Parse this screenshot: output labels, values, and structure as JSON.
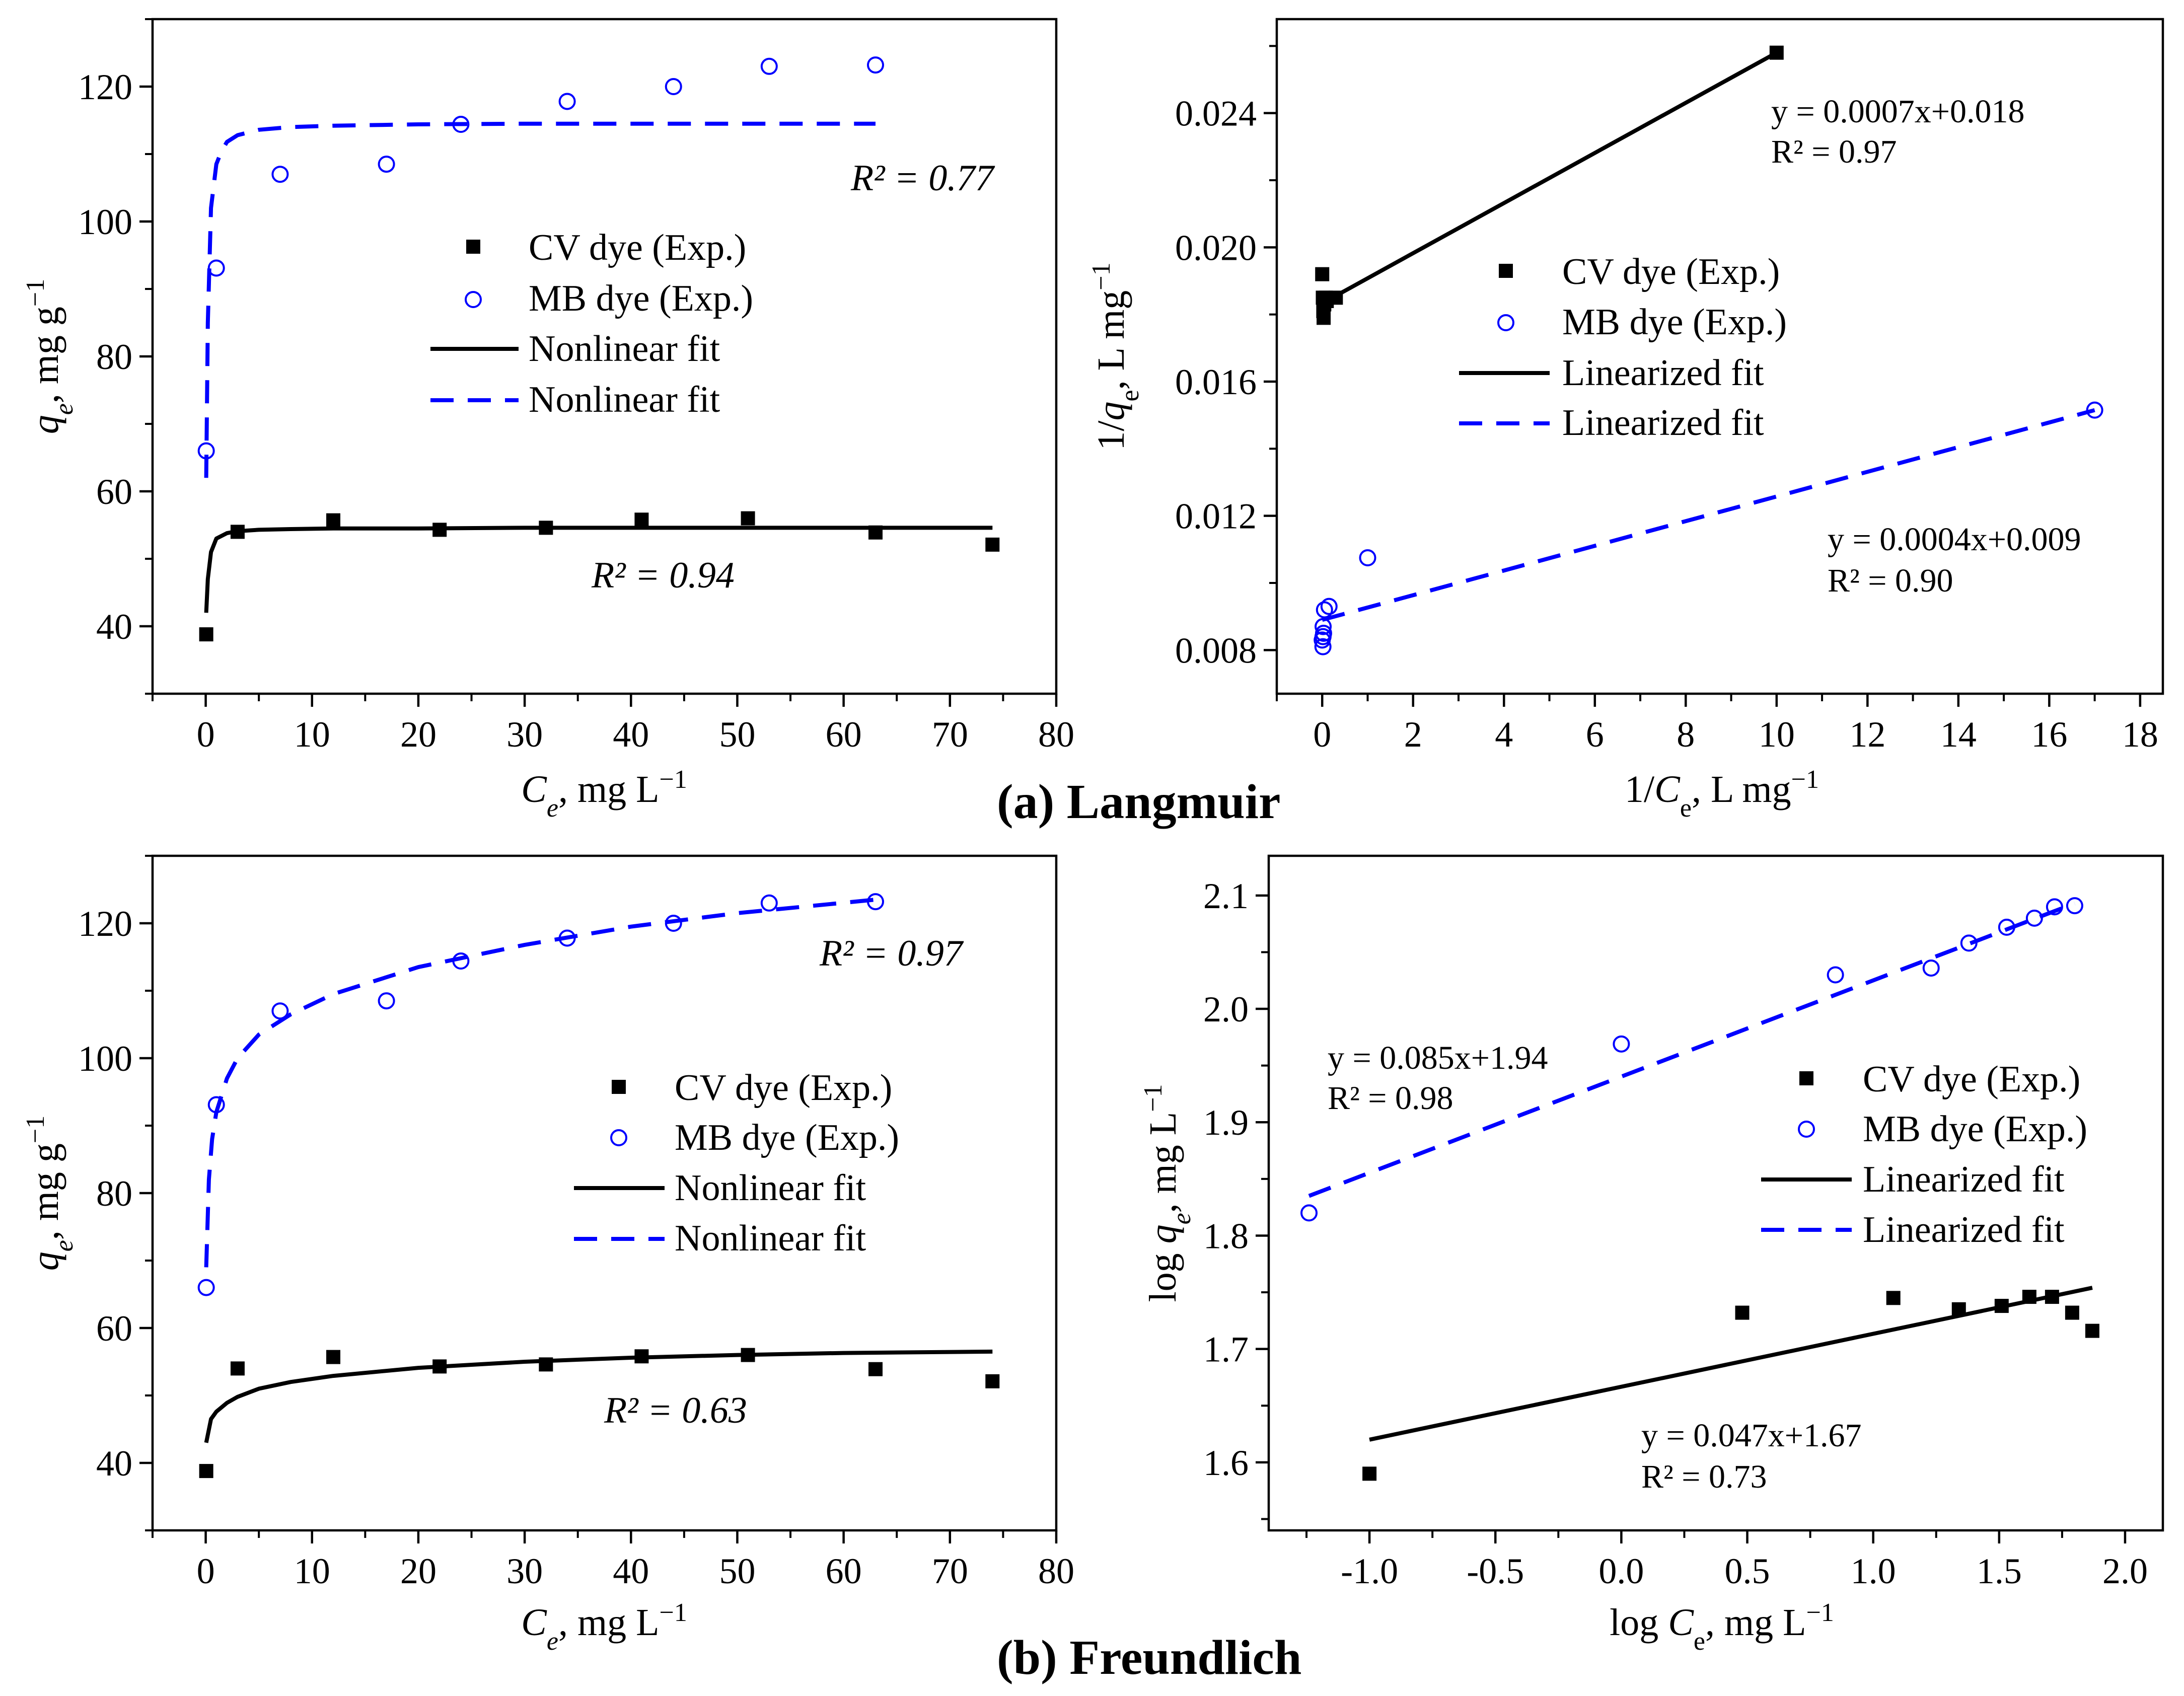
{
  "figure": {
    "caption_a": "(a) Langmuir",
    "caption_b": "(b) Freundlich"
  },
  "chart_data": [
    {
      "id": "langmuir_nonlinear",
      "type": "scatter",
      "xlabel": "Ce, mg L−1",
      "ylabel": "qe, mg g−1",
      "xlim": [
        -5,
        80
      ],
      "ylim": [
        30,
        130
      ],
      "xticks": [
        0,
        10,
        20,
        30,
        40,
        50,
        60,
        70,
        80
      ],
      "yticks": [
        40,
        60,
        80,
        100,
        120
      ],
      "legend": [
        "CV dye (Exp.)",
        "MB dye (Exp.)",
        "Nonlinear fit",
        "Nonlinear fit"
      ],
      "series": [
        {
          "name": "CV dye (Exp.)",
          "marker": "square",
          "color": "#000000",
          "x": [
            0.05,
            3,
            12,
            22,
            32,
            41,
            51,
            63,
            74
          ],
          "y": [
            38.8,
            54.0,
            55.7,
            54.3,
            54.6,
            55.8,
            56.0,
            53.9,
            52.1
          ]
        },
        {
          "name": "MB dye (Exp.)",
          "marker": "circle",
          "color": "#0000ff",
          "x": [
            0.05,
            1,
            7,
            17,
            24,
            34,
            44,
            53,
            63
          ],
          "y": [
            66.0,
            93.1,
            107.0,
            108.5,
            114.4,
            117.8,
            120.0,
            123.0,
            123.2
          ]
        },
        {
          "name": "Nonlinear fit",
          "line": "solid",
          "color": "#000000",
          "x": [
            0.05,
            0.2,
            0.5,
            1,
            2,
            3,
            5,
            8,
            12,
            20,
            30,
            40,
            50,
            60,
            70,
            74
          ],
          "y": [
            42.0,
            47.0,
            51.0,
            53.0,
            53.8,
            54.1,
            54.3,
            54.4,
            54.5,
            54.5,
            54.6,
            54.6,
            54.6,
            54.6,
            54.6,
            54.6
          ]
        },
        {
          "name": "Nonlinear fit",
          "line": "dashed",
          "color": "#0000ff",
          "x": [
            0.05,
            0.2,
            0.5,
            1,
            1.5,
            2,
            3,
            5,
            8,
            12,
            20,
            30,
            40,
            50,
            63
          ],
          "y": [
            62.0,
            85.0,
            102.0,
            108.5,
            110.5,
            111.8,
            112.8,
            113.6,
            114.0,
            114.2,
            114.4,
            114.5,
            114.5,
            114.5,
            114.5
          ]
        }
      ],
      "annotations": [
        "R² = 0.77",
        "R² = 0.94"
      ]
    },
    {
      "id": "langmuir_linear",
      "type": "scatter",
      "xlabel": "1/Ce, L mg−1",
      "ylabel": "1/qe, L mg−1",
      "xlim": [
        -1,
        18.5
      ],
      "ylim": [
        0.0067,
        0.0268
      ],
      "xticks": [
        0,
        2,
        4,
        6,
        8,
        10,
        12,
        14,
        16,
        18
      ],
      "yticks": [
        0.008,
        0.012,
        0.016,
        0.02,
        0.024
      ],
      "legend": [
        "CV dye (Exp.)",
        "MB dye (Exp.)",
        "Linearized fit",
        "Linearized fit"
      ],
      "series": [
        {
          "name": "CV dye (Exp.)",
          "marker": "square",
          "color": "#000000",
          "x": [
            10.0,
            0.0,
            0.014,
            0.024,
            0.031,
            0.045,
            0.08,
            0.1,
            0.3
          ],
          "y": [
            0.0258,
            0.0192,
            0.0185,
            0.0181,
            0.0179,
            0.0183,
            0.0185,
            0.0184,
            0.0185
          ]
        },
        {
          "name": "MB dye (Exp.)",
          "marker": "circle",
          "color": "#0000ff",
          "x": [
            17.0,
            1.0,
            0.15,
            0.05,
            0.02,
            0.03,
            0.0,
            0.016,
            0.018
          ],
          "y": [
            0.01515,
            0.01075,
            0.0093,
            0.0092,
            0.0087,
            0.0085,
            0.0083,
            0.0081,
            0.0084
          ]
        },
        {
          "name": "Linearized fit",
          "line": "solid",
          "color": "#000000",
          "x": [
            0.05,
            10.0
          ],
          "y": [
            0.01837,
            0.0258
          ]
        },
        {
          "name": "Linearized fit",
          "line": "dashed",
          "color": "#0000ff",
          "x": [
            0.0,
            17.0
          ],
          "y": [
            0.0089,
            0.01515
          ]
        }
      ],
      "annotations": [
        {
          "line1": "y = 0.0007x+0.018",
          "line2": "R² = 0.97"
        },
        {
          "line1": "y = 0.0004x+0.009",
          "line2": "R² = 0.90"
        }
      ]
    },
    {
      "id": "freundlich_nonlinear",
      "type": "scatter",
      "xlabel": "Ce, mg L−1",
      "ylabel": "qe, mg g−1",
      "xlim": [
        -5,
        80
      ],
      "ylim": [
        30,
        130
      ],
      "xticks": [
        0,
        10,
        20,
        30,
        40,
        50,
        60,
        70,
        80
      ],
      "yticks": [
        40,
        60,
        80,
        100,
        120
      ],
      "legend": [
        "CV dye (Exp.)",
        "MB dye (Exp.)",
        "Nonlinear fit",
        "Nonlinear fit"
      ],
      "series": [
        {
          "name": "CV dye (Exp.)",
          "marker": "square",
          "color": "#000000",
          "x": [
            0.05,
            3,
            12,
            22,
            32,
            41,
            51,
            63,
            74
          ],
          "y": [
            38.8,
            54.0,
            55.7,
            54.3,
            54.6,
            55.8,
            56.0,
            53.9,
            52.1
          ]
        },
        {
          "name": "MB dye (Exp.)",
          "marker": "circle",
          "color": "#0000ff",
          "x": [
            0.05,
            1,
            7,
            17,
            24,
            34,
            44,
            53,
            63
          ],
          "y": [
            66.0,
            93.1,
            107.0,
            108.5,
            114.4,
            117.8,
            120.0,
            123.0,
            123.2
          ]
        },
        {
          "name": "Nonlinear fit",
          "line": "solid",
          "color": "#000000",
          "x": [
            0.05,
            0.5,
            1,
            2,
            3,
            5,
            8,
            12,
            20,
            30,
            40,
            50,
            60,
            74
          ],
          "y": [
            43.0,
            46.5,
            47.6,
            48.9,
            49.8,
            51.0,
            52.0,
            52.9,
            54.1,
            55.0,
            55.6,
            56.0,
            56.3,
            56.5
          ]
        },
        {
          "name": "Nonlinear fit",
          "line": "dashed",
          "color": "#0000ff",
          "x": [
            0.05,
            0.3,
            0.6,
            1,
            2,
            3,
            5,
            8,
            12,
            20,
            30,
            40,
            50,
            63
          ],
          "y": [
            69.0,
            82.0,
            88.0,
            92.0,
            97.0,
            100.0,
            103.5,
            106.5,
            109.5,
            113.5,
            116.8,
            119.5,
            121.5,
            123.5
          ]
        }
      ],
      "annotations": [
        "R² = 0.97",
        "R² = 0.63"
      ]
    },
    {
      "id": "freundlich_linear",
      "type": "scatter",
      "xlabel": "log Ce, mg L−1",
      "ylabel": "log qe, mg L−1",
      "xlim": [
        -1.4,
        2.15
      ],
      "ylim": [
        1.54,
        2.135
      ],
      "xticks": [
        -1.0,
        -0.5,
        0.0,
        0.5,
        1.0,
        1.5,
        2.0
      ],
      "xtick_labels": [
        "-1.0",
        "-0.5",
        "0.0",
        "0.5",
        "1.0",
        "1.5",
        "2.0"
      ],
      "yticks": [
        1.6,
        1.7,
        1.8,
        1.9,
        2.0,
        2.1
      ],
      "legend": [
        "CV dye (Exp.)",
        "MB dye (Exp.)",
        "Linearized fit",
        "Linearized fit"
      ],
      "series": [
        {
          "name": "CV dye (Exp.)",
          "marker": "square",
          "color": "#000000",
          "x": [
            -1.0,
            0.48,
            1.08,
            1.34,
            1.51,
            1.62,
            1.71,
            1.79,
            1.87
          ],
          "y": [
            1.59,
            1.732,
            1.745,
            1.735,
            1.738,
            1.746,
            1.746,
            1.732,
            1.716
          ]
        },
        {
          "name": "MB dye (Exp.)",
          "marker": "circle",
          "color": "#0000ff",
          "x": [
            -1.24,
            0.0,
            0.85,
            1.23,
            1.38,
            1.53,
            1.64,
            1.72,
            1.8
          ],
          "y": [
            1.82,
            1.969,
            2.03,
            2.036,
            2.058,
            2.072,
            2.08,
            2.09,
            2.091
          ]
        },
        {
          "name": "Linearized fit",
          "line": "solid",
          "color": "#000000",
          "x": [
            -1.0,
            1.87
          ],
          "y": [
            1.62,
            1.754
          ]
        },
        {
          "name": "Linearized fit",
          "line": "dashed",
          "color": "#0000ff",
          "x": [
            -1.24,
            1.8
          ],
          "y": [
            1.835,
            2.093
          ]
        }
      ],
      "annotations": [
        {
          "line1": "y = 0.085x+1.94",
          "line2": "R² = 0.98"
        },
        {
          "line1": "y = 0.047x+1.67",
          "line2": "R² = 0.73"
        }
      ]
    }
  ]
}
